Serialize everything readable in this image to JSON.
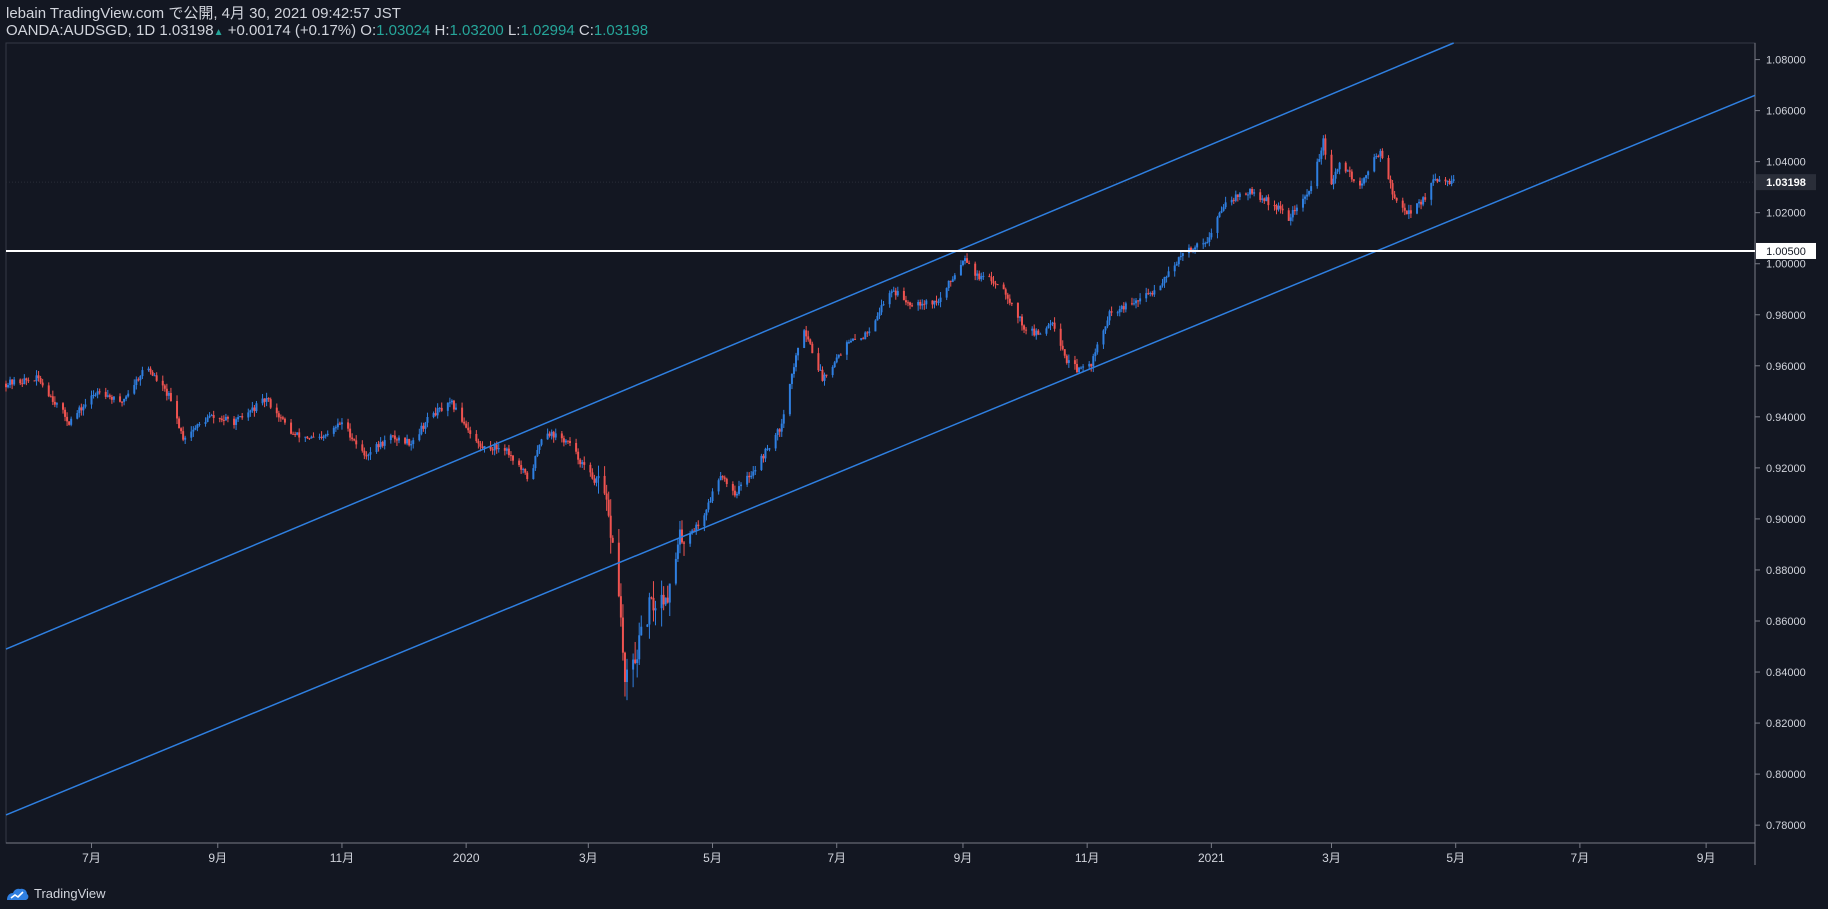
{
  "header": {
    "publish_line": "lebain TradingView.com で公開, 4月 30, 2021 09:42:57 JST",
    "symbol": "OANDA:AUDSGD, 1D",
    "last": "1.03198",
    "change": "+0.00174 (+0.17%)",
    "o_label": "O:",
    "o": "1.03024",
    "h_label": "H:",
    "h": "1.03200",
    "l_label": "L:",
    "l": "1.02994",
    "c_label": "C:",
    "c": "1.03198"
  },
  "footer": {
    "brand": "TradingView",
    "logo_icon": "tradingview-logo-icon"
  },
  "colors": {
    "background": "#131722",
    "up": "#2f7fe0",
    "down": "#ef5350",
    "channel": "#2f7fe0",
    "hline": "#ffffff",
    "text": "#d1d4dc",
    "teal": "#26a69a"
  },
  "chart_data": {
    "type": "candlestick",
    "title": "OANDA:AUDSGD, 1D",
    "x_axis": {
      "start": "2019-05-20",
      "end": "2021-09-25",
      "ticks": [
        {
          "date": "2019-07-01",
          "label": "7月"
        },
        {
          "date": "2019-09-01",
          "label": "9月"
        },
        {
          "date": "2019-11-01",
          "label": "11月"
        },
        {
          "date": "2020-01-01",
          "label": "2020"
        },
        {
          "date": "2020-03-01",
          "label": "3月"
        },
        {
          "date": "2020-05-01",
          "label": "5月"
        },
        {
          "date": "2020-07-01",
          "label": "7月"
        },
        {
          "date": "2020-09-01",
          "label": "9月"
        },
        {
          "date": "2020-11-01",
          "label": "11月"
        },
        {
          "date": "2021-01-01",
          "label": "2021"
        },
        {
          "date": "2021-03-01",
          "label": "3月"
        },
        {
          "date": "2021-05-01",
          "label": "5月"
        },
        {
          "date": "2021-07-01",
          "label": "7月"
        },
        {
          "date": "2021-09-01",
          "label": "9月"
        }
      ]
    },
    "y_axis": {
      "min": 0.773,
      "max": 1.0865,
      "ticks": [
        {
          "v": 1.08,
          "label": "1.08000"
        },
        {
          "v": 1.06,
          "label": "1.06000"
        },
        {
          "v": 1.04,
          "label": "1.04000"
        },
        {
          "v": 1.02,
          "label": "1.02000"
        },
        {
          "v": 1.0,
          "label": "1.00000"
        },
        {
          "v": 0.98,
          "label": "0.98000"
        },
        {
          "v": 0.96,
          "label": "0.96000"
        },
        {
          "v": 0.94,
          "label": "0.94000"
        },
        {
          "v": 0.92,
          "label": "0.92000"
        },
        {
          "v": 0.9,
          "label": "0.90000"
        },
        {
          "v": 0.88,
          "label": "0.88000"
        },
        {
          "v": 0.86,
          "label": "0.86000"
        },
        {
          "v": 0.84,
          "label": "0.84000"
        },
        {
          "v": 0.82,
          "label": "0.82000"
        },
        {
          "v": 0.8,
          "label": "0.80000"
        },
        {
          "v": 0.78,
          "label": "0.78000"
        }
      ]
    },
    "last_price": {
      "value": 1.03198,
      "label": "1.03198"
    },
    "horizontal_line": {
      "value": 1.005,
      "label": "1.00500"
    },
    "channel": {
      "upper": [
        {
          "date": "2019-05-20",
          "v": 0.849
        },
        {
          "date": "2021-04-30",
          "v": 1.0865
        }
      ],
      "lower": [
        {
          "date": "2019-05-20",
          "v": 0.784
        },
        {
          "date": "2021-09-25",
          "v": 1.066
        }
      ]
    },
    "price_path": [
      [
        "2019-05-20",
        0.953
      ],
      [
        "2019-06-05",
        0.955
      ],
      [
        "2019-06-20",
        0.938
      ],
      [
        "2019-07-05",
        0.951
      ],
      [
        "2019-07-15",
        0.945
      ],
      [
        "2019-07-28",
        0.96
      ],
      [
        "2019-08-08",
        0.948
      ],
      [
        "2019-08-15",
        0.932
      ],
      [
        "2019-08-28",
        0.94
      ],
      [
        "2019-09-10",
        0.938
      ],
      [
        "2019-09-25",
        0.947
      ],
      [
        "2019-10-08",
        0.933
      ],
      [
        "2019-10-22",
        0.931
      ],
      [
        "2019-11-01",
        0.938
      ],
      [
        "2019-11-12",
        0.925
      ],
      [
        "2019-11-25",
        0.932
      ],
      [
        "2019-12-05",
        0.93
      ],
      [
        "2019-12-15",
        0.941
      ],
      [
        "2019-12-25",
        0.945
      ],
      [
        "2020-01-08",
        0.928
      ],
      [
        "2020-01-20",
        0.928
      ],
      [
        "2020-02-01",
        0.915
      ],
      [
        "2020-02-08",
        0.935
      ],
      [
        "2020-02-20",
        0.93
      ],
      [
        "2020-03-01",
        0.918
      ],
      [
        "2020-03-08",
        0.912
      ],
      [
        "2020-03-12",
        0.895
      ],
      [
        "2020-03-16",
        0.872
      ],
      [
        "2020-03-19",
        0.835
      ],
      [
        "2020-03-24",
        0.845
      ],
      [
        "2020-03-31",
        0.865
      ],
      [
        "2020-04-10",
        0.872
      ],
      [
        "2020-04-15",
        0.892
      ],
      [
        "2020-04-25",
        0.898
      ],
      [
        "2020-05-05",
        0.918
      ],
      [
        "2020-05-12",
        0.91
      ],
      [
        "2020-05-22",
        0.92
      ],
      [
        "2020-06-03",
        0.935
      ],
      [
        "2020-06-10",
        0.96
      ],
      [
        "2020-06-15",
        0.975
      ],
      [
        "2020-06-24",
        0.955
      ],
      [
        "2020-07-05",
        0.968
      ],
      [
        "2020-07-15",
        0.972
      ],
      [
        "2020-07-28",
        0.99
      ],
      [
        "2020-08-05",
        0.985
      ],
      [
        "2020-08-20",
        0.985
      ],
      [
        "2020-09-02",
        1.003
      ],
      [
        "2020-09-08",
        0.995
      ],
      [
        "2020-09-20",
        0.992
      ],
      [
        "2020-10-01",
        0.975
      ],
      [
        "2020-10-08",
        0.972
      ],
      [
        "2020-10-15",
        0.978
      ],
      [
        "2020-10-22",
        0.962
      ],
      [
        "2020-10-28",
        0.958
      ],
      [
        "2020-11-03",
        0.961
      ],
      [
        "2020-11-12",
        0.98
      ],
      [
        "2020-11-25",
        0.985
      ],
      [
        "2020-12-05",
        0.99
      ],
      [
        "2020-12-12",
        0.998
      ],
      [
        "2020-12-20",
        1.005
      ],
      [
        "2020-12-31",
        1.01
      ],
      [
        "2021-01-08",
        1.025
      ],
      [
        "2021-01-20",
        1.028
      ],
      [
        "2021-02-01",
        1.023
      ],
      [
        "2021-02-08",
        1.018
      ],
      [
        "2021-02-18",
        1.028
      ],
      [
        "2021-02-25",
        1.048
      ],
      [
        "2021-03-01",
        1.03
      ],
      [
        "2021-03-05",
        1.04
      ],
      [
        "2021-03-15",
        1.03
      ],
      [
        "2021-03-25",
        1.045
      ],
      [
        "2021-04-01",
        1.025
      ],
      [
        "2021-04-08",
        1.02
      ],
      [
        "2021-04-15",
        1.025
      ],
      [
        "2021-04-20",
        1.032
      ],
      [
        "2021-04-30",
        1.032
      ]
    ],
    "candles_note": "daily candles from 2019-05-20 to 2021-04-30 following price_path"
  }
}
